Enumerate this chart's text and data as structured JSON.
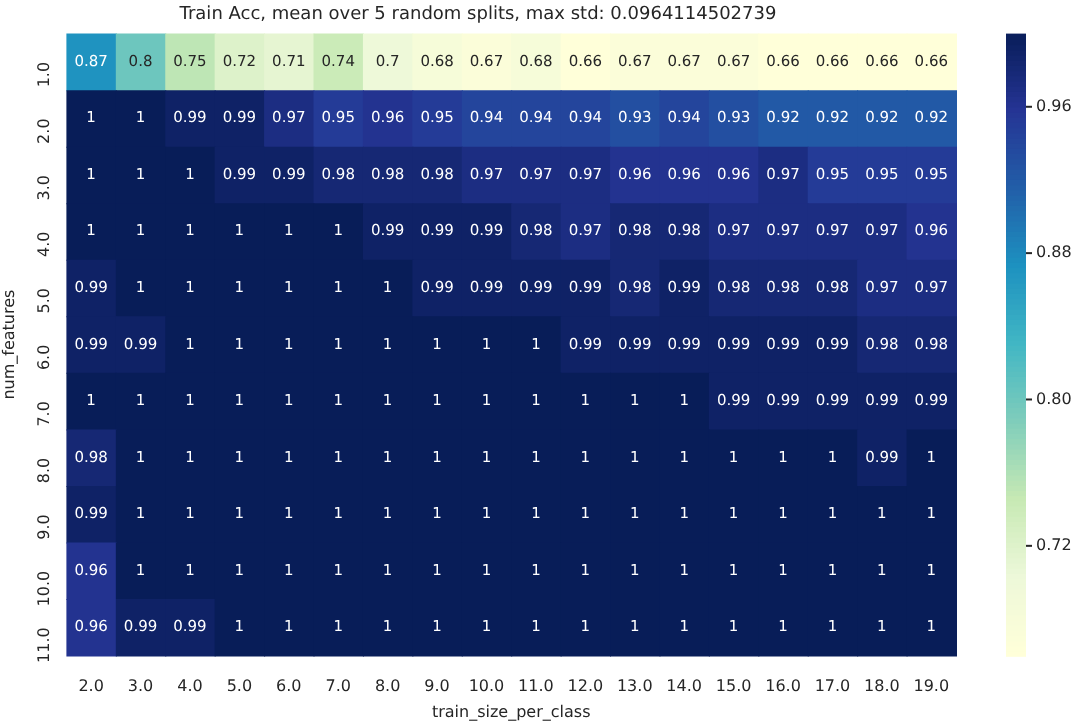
{
  "chart_data": {
    "type": "heatmap",
    "title": "Train Acc, mean over 5 random splits, max std: 0.0964114502739",
    "xlabel": "train_size_per_class",
    "ylabel": "num_features",
    "categories": [
      "2.0",
      "3.0",
      "4.0",
      "5.0",
      "6.0",
      "7.0",
      "8.0",
      "9.0",
      "10.0",
      "11.0",
      "12.0",
      "13.0",
      "14.0",
      "15.0",
      "16.0",
      "17.0",
      "18.0",
      "19.0"
    ],
    "y_categories": [
      "1.0",
      "2.0",
      "3.0",
      "4.0",
      "5.0",
      "6.0",
      "7.0",
      "8.0",
      "9.0",
      "10.0",
      "11.0"
    ],
    "cells": [
      [
        0.87,
        0.8,
        0.75,
        0.72,
        0.71,
        0.74,
        0.7,
        0.68,
        0.67,
        0.68,
        0.66,
        0.67,
        0.67,
        0.67,
        0.66,
        0.66,
        0.66,
        0.66
      ],
      [
        1,
        1,
        0.99,
        0.99,
        0.97,
        0.95,
        0.96,
        0.95,
        0.94,
        0.94,
        0.94,
        0.93,
        0.94,
        0.93,
        0.92,
        0.92,
        0.92,
        0.92
      ],
      [
        1,
        1,
        1,
        0.99,
        0.99,
        0.98,
        0.98,
        0.98,
        0.97,
        0.97,
        0.97,
        0.96,
        0.96,
        0.96,
        0.97,
        0.95,
        0.95,
        0.95
      ],
      [
        1,
        1,
        1,
        1,
        1,
        1,
        0.99,
        0.99,
        0.99,
        0.98,
        0.97,
        0.98,
        0.98,
        0.97,
        0.97,
        0.97,
        0.97,
        0.96
      ],
      [
        0.99,
        1,
        1,
        1,
        1,
        1,
        1,
        0.99,
        0.99,
        0.99,
        0.99,
        0.98,
        0.99,
        0.98,
        0.98,
        0.98,
        0.97,
        0.97
      ],
      [
        0.99,
        0.99,
        1,
        1,
        1,
        1,
        1,
        1,
        1,
        1,
        0.99,
        0.99,
        0.99,
        0.99,
        0.99,
        0.99,
        0.98,
        0.98
      ],
      [
        1,
        1,
        1,
        1,
        1,
        1,
        1,
        1,
        1,
        1,
        1,
        1,
        1,
        0.99,
        0.99,
        0.99,
        0.99,
        0.99
      ],
      [
        0.98,
        1,
        1,
        1,
        1,
        1,
        1,
        1,
        1,
        1,
        1,
        1,
        1,
        1,
        1,
        1,
        0.99,
        1
      ],
      [
        0.99,
        1,
        1,
        1,
        1,
        1,
        1,
        1,
        1,
        1,
        1,
        1,
        1,
        1,
        1,
        1,
        1,
        1
      ],
      [
        0.96,
        1,
        1,
        1,
        1,
        1,
        1,
        1,
        1,
        1,
        1,
        1,
        1,
        1,
        1,
        1,
        1,
        1
      ],
      [
        0.96,
        0.99,
        0.99,
        1,
        1,
        1,
        1,
        1,
        1,
        1,
        1,
        1,
        1,
        1,
        1,
        1,
        1,
        1
      ]
    ],
    "clim": [
      0.66,
      1.0
    ],
    "cticks": [
      {
        "value": 0.72,
        "label": "0.72"
      },
      {
        "value": 0.8,
        "label": "0.80"
      },
      {
        "value": 0.88,
        "label": "0.88"
      },
      {
        "value": 0.96,
        "label": "0.96"
      }
    ],
    "data_labels": true
  }
}
